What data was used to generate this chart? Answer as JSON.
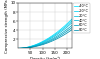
{
  "xlabel": "Density (kg/m³)",
  "ylabel": "Compressive strength (MPa)",
  "xlim": [
    0,
    220
  ],
  "ylim": [
    0,
    10
  ],
  "xticks": [
    50,
    100,
    150,
    200
  ],
  "yticks": [
    2,
    4,
    6,
    8,
    10
  ],
  "series": [
    {
      "label": "-40°C",
      "color": "#00e0ff",
      "a": 0.0003,
      "b": 1.85
    },
    {
      "label": "-20°C",
      "color": "#00d0f0",
      "a": 0.00024,
      "b": 1.88
    },
    {
      "label": "20°C",
      "color": "#00c0e0",
      "a": 0.00018,
      "b": 1.92
    },
    {
      "label": "40°C",
      "color": "#00b0d0",
      "a": 0.00013,
      "b": 1.96
    },
    {
      "label": "60°C",
      "color": "#00a0c0",
      "a": 9.5e-05,
      "b": 2.0
    },
    {
      "label": "80°C",
      "color": "#0090b0",
      "a": 6.5e-05,
      "b": 2.05
    }
  ],
  "background_color": "#ffffff",
  "grid_color": "#cccccc"
}
